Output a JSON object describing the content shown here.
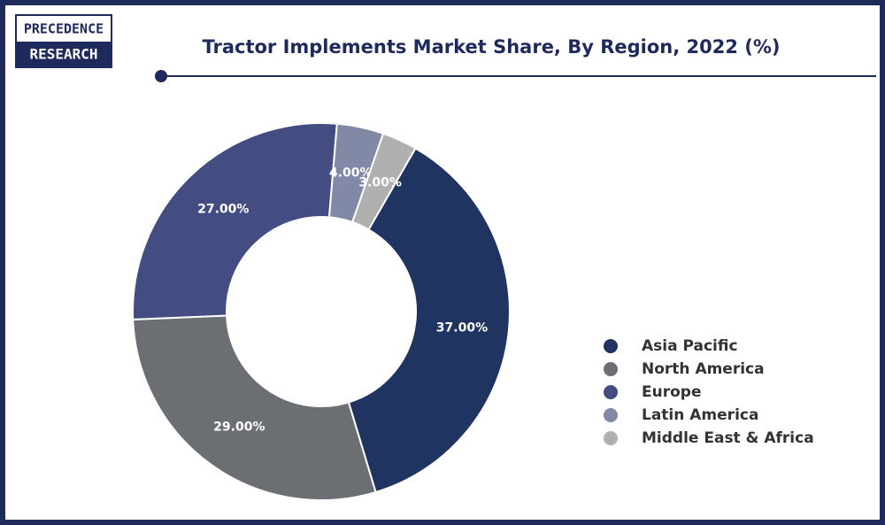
{
  "logo": {
    "line1": "PRECEDENCE",
    "line2": "RESEARCH"
  },
  "chart_data": {
    "type": "donut",
    "title": "Tractor Implements Market Share, By Region, 2022 (%)",
    "categories": [
      "Asia Pacific",
      "North America",
      "Europe",
      "Latin America",
      "Middle East & Africa"
    ],
    "values": [
      37,
      29,
      27,
      4,
      3
    ],
    "value_labels": [
      "37.00%",
      "29.00%",
      "27.00%",
      "4.00%",
      "3.00%"
    ],
    "colors": [
      "#1f3461",
      "#6b6e73",
      "#434d82",
      "#8289a6",
      "#b0b0b0"
    ],
    "legend": "right"
  }
}
